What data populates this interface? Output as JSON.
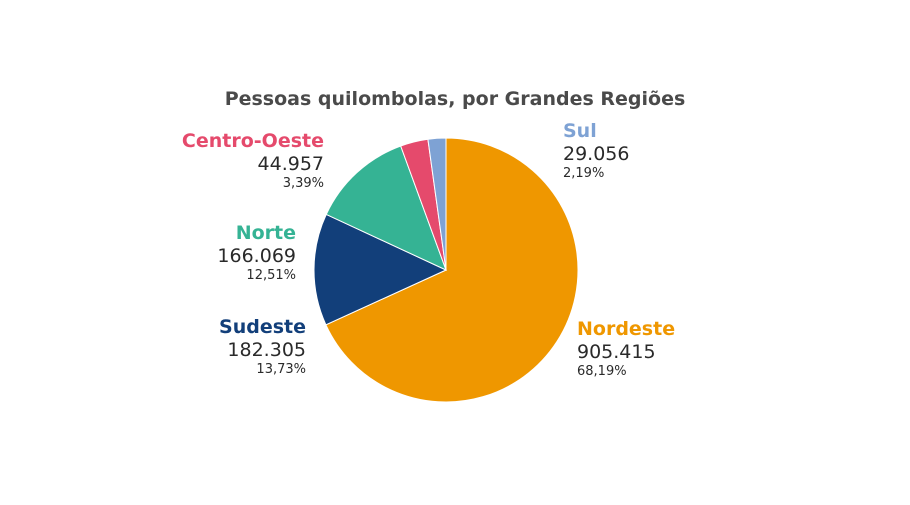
{
  "chart_data": {
    "type": "pie",
    "title": "Pessoas quilombolas, por Grandes Regiões",
    "slices": [
      {
        "name": "Nordeste",
        "value": 905415,
        "value_label": "905.415",
        "percent_label": "68,19%",
        "percent": 68.19,
        "color": "#ef9700"
      },
      {
        "name": "Sudeste",
        "value": 182305,
        "value_label": "182.305",
        "percent_label": "13,73%",
        "percent": 13.73,
        "color": "#123f7a"
      },
      {
        "name": "Norte",
        "value": 166069,
        "value_label": "166.069",
        "percent_label": "12,51%",
        "percent": 12.51,
        "color": "#35b394"
      },
      {
        "name": "Centro-Oeste",
        "value": 44957,
        "value_label": "44.957",
        "percent_label": "3,39%",
        "percent": 3.39,
        "color": "#e54a6c"
      },
      {
        "name": "Sul",
        "value": 29056,
        "value_label": "29.056",
        "percent_label": "2,19%",
        "percent": 2.19,
        "color": "#7ea2d4"
      }
    ]
  }
}
